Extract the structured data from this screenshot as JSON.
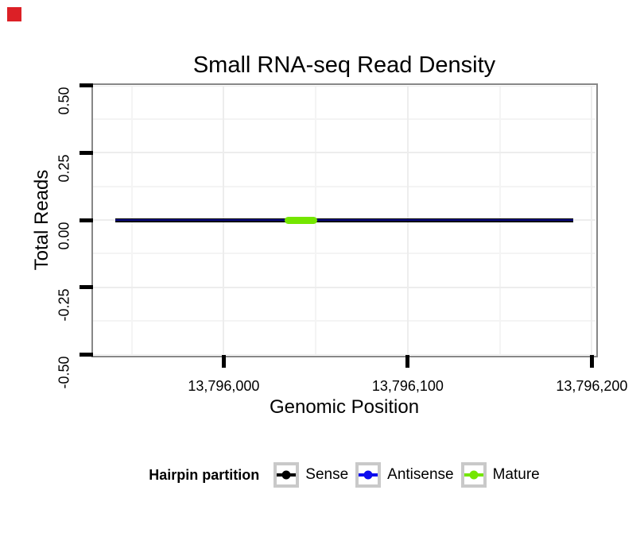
{
  "click_marker": {
    "color": "#DC2026"
  },
  "chart_data": {
    "type": "line",
    "title": "Small RNA-seq Read Density",
    "xlabel": "Genomic Position",
    "ylabel": "Total Reads",
    "xlim": [
      13795929,
      13796202
    ],
    "ylim": [
      -0.5,
      0.5
    ],
    "x_ticks": [
      {
        "value": 13796000,
        "label": "13,796,000"
      },
      {
        "value": 13796100,
        "label": "13,796,100"
      },
      {
        "value": 13796200,
        "label": "13,796,200"
      }
    ],
    "x_minor_ticks": [
      13795950,
      13796050,
      13796150
    ],
    "y_ticks": [
      {
        "value": 0.5,
        "label": "0.50"
      },
      {
        "value": 0.25,
        "label": "0.25"
      },
      {
        "value": 0,
        "label": "0.00"
      },
      {
        "value": -0.25,
        "label": "-0.25"
      },
      {
        "value": -0.5,
        "label": "-0.50"
      }
    ],
    "y_minor_ticks": [
      0.375,
      0.125,
      -0.125,
      -0.375
    ],
    "grid": "major and minor gridlines, very light gray on white panel, gray panel border",
    "legend": {
      "title": "Hairpin partition",
      "position": "bottom",
      "items": [
        {
          "label": "Sense",
          "color": "#000000"
        },
        {
          "label": "Antisense",
          "color": "#0D0DEE"
        },
        {
          "label": "Mature",
          "color": "#74E600"
        }
      ]
    },
    "series": [
      {
        "name": "Sense",
        "color": "#000000",
        "x": [
          13795941,
          13796190
        ],
        "y": [
          0,
          0
        ],
        "linewidth": 5,
        "cap": "butt"
      },
      {
        "name": "Antisense",
        "color": "#0D0DEE",
        "x": [
          13795941,
          13796190
        ],
        "y": [
          0,
          0
        ],
        "linewidth": 2,
        "cap": "butt",
        "opacity": 0.55
      },
      {
        "name": "Mature",
        "color": "#74E600",
        "x": [
          13796035,
          13796049
        ],
        "y": [
          0,
          0
        ],
        "linewidth": 9,
        "cap": "round"
      }
    ]
  }
}
